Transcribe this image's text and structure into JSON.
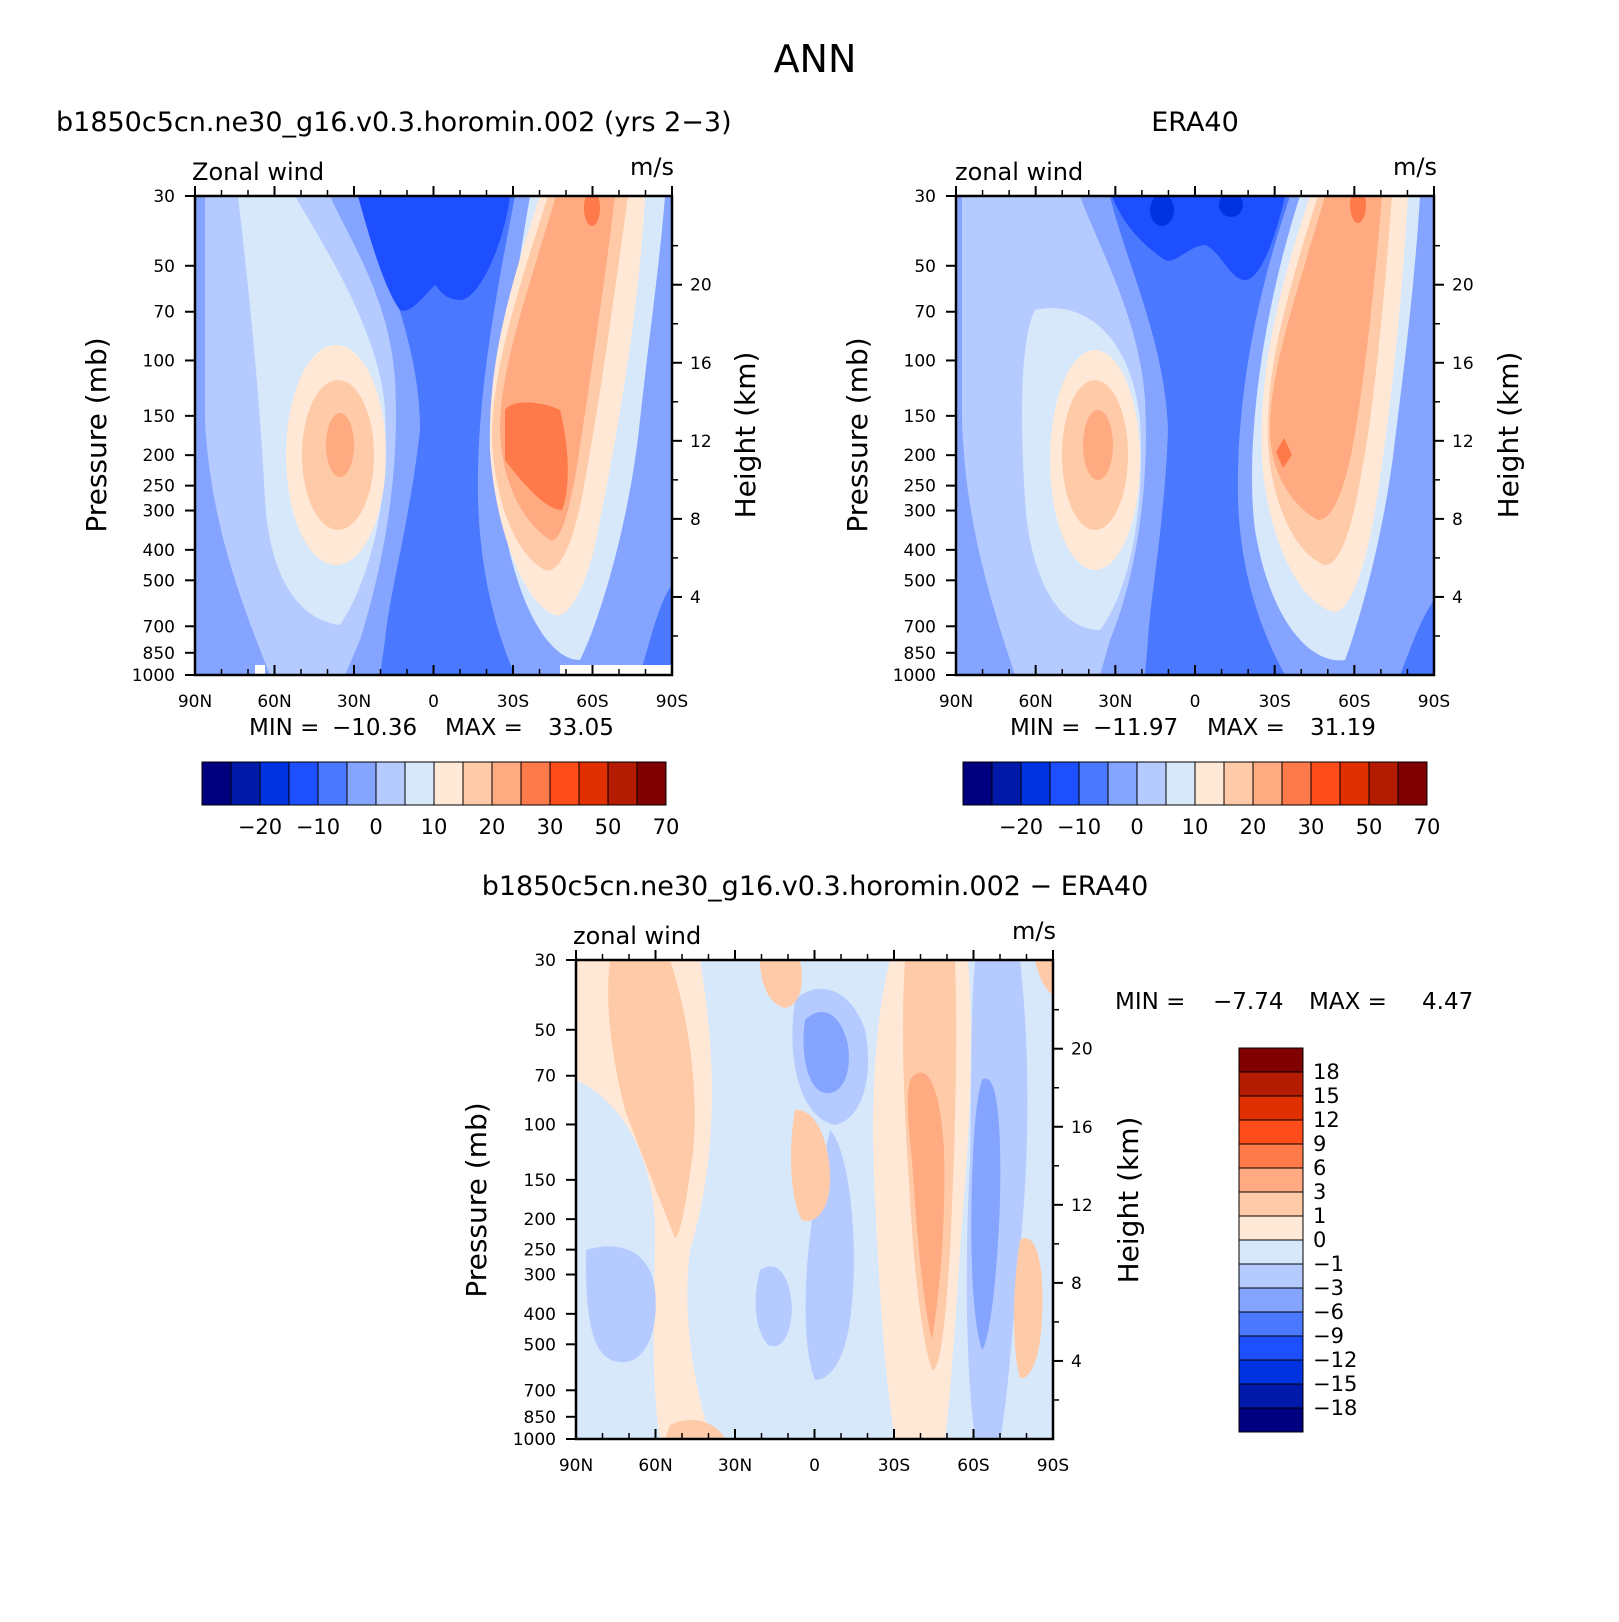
{
  "page_title": "ANN",
  "chart_data": [
    {
      "id": "model",
      "type": "heatmap",
      "title": "b1850c5cn.ne30_g16.v0.3.horomin.002 (yrs 2−3)",
      "left_label": "Zonal wind",
      "right_label": "m/s",
      "ylabel": "Pressure (mb)",
      "ylabel_right": "Height (km)",
      "x_ticks": [
        "90N",
        "60N",
        "30N",
        "0",
        "30S",
        "60S",
        "90S"
      ],
      "y_ticks": [
        "30",
        "50",
        "70",
        "100",
        "150",
        "200",
        "250",
        "300",
        "400",
        "500",
        "700",
        "850",
        "1000"
      ],
      "y2_ticks": [
        "20",
        "16",
        "12",
        "8",
        "4"
      ],
      "min_label": "MIN =",
      "min_value": "−10.36",
      "max_label": "MAX =",
      "max_value": "33.05",
      "colorbar": {
        "colors": [
          "#00007f",
          "#0019a8",
          "#0033e0",
          "#1e4fff",
          "#4a78ff",
          "#84a4ff",
          "#b5cbff",
          "#d8e8fb",
          "#ffe8d6",
          "#ffcaa8",
          "#ffaa80",
          "#ff7a4a",
          "#ff4c1a",
          "#e03000",
          "#b31c00",
          "#7f0000"
        ],
        "labels": [
          "−20",
          "−10",
          "0",
          "10",
          "20",
          "30",
          "50",
          "70"
        ]
      }
    },
    {
      "id": "obs",
      "type": "heatmap",
      "title": "ERA40",
      "left_label": "zonal wind",
      "right_label": "m/s",
      "ylabel": "Pressure (mb)",
      "ylabel_right": "Height (km)",
      "x_ticks": [
        "90N",
        "60N",
        "30N",
        "0",
        "30S",
        "60S",
        "90S"
      ],
      "y_ticks": [
        "30",
        "50",
        "70",
        "100",
        "150",
        "200",
        "250",
        "300",
        "400",
        "500",
        "700",
        "850",
        "1000"
      ],
      "y2_ticks": [
        "20",
        "16",
        "12",
        "8",
        "4"
      ],
      "min_label": "MIN =",
      "min_value": "−11.97",
      "max_label": "MAX =",
      "max_value": "31.19",
      "colorbar": {
        "colors": [
          "#00007f",
          "#0019a8",
          "#0033e0",
          "#1e4fff",
          "#4a78ff",
          "#84a4ff",
          "#b5cbff",
          "#d8e8fb",
          "#ffe8d6",
          "#ffcaa8",
          "#ffaa80",
          "#ff7a4a",
          "#ff4c1a",
          "#e03000",
          "#b31c00",
          "#7f0000"
        ],
        "labels": [
          "−20",
          "−10",
          "0",
          "10",
          "20",
          "30",
          "50",
          "70"
        ]
      }
    },
    {
      "id": "diff",
      "type": "heatmap",
      "title": "b1850c5cn.ne30_g16.v0.3.horomin.002 − ERA40",
      "left_label": "zonal wind",
      "right_label": "m/s",
      "ylabel": "Pressure (mb)",
      "ylabel_right": "Height (km)",
      "x_ticks": [
        "90N",
        "60N",
        "30N",
        "0",
        "30S",
        "60S",
        "90S"
      ],
      "y_ticks": [
        "30",
        "50",
        "70",
        "100",
        "150",
        "200",
        "250",
        "300",
        "400",
        "500",
        "700",
        "850",
        "1000"
      ],
      "y2_ticks": [
        "20",
        "16",
        "12",
        "8",
        "4"
      ],
      "min_label": "MIN =",
      "min_value": "−7.74",
      "max_label": "MAX =",
      "max_value": "4.47",
      "colorbar": {
        "colors": [
          "#7f0000",
          "#b31c00",
          "#e03000",
          "#ff4c1a",
          "#ff7a4a",
          "#ffaa80",
          "#ffcaa8",
          "#ffe8d6",
          "#d8e8fb",
          "#b5cbff",
          "#84a4ff",
          "#4a78ff",
          "#1e4fff",
          "#0033e0",
          "#0019a8",
          "#00007f"
        ],
        "labels": [
          "18",
          "15",
          "12",
          "9",
          "6",
          "3",
          "1",
          "0",
          "−1",
          "−3",
          "−6",
          "−9",
          "−12",
          "−15",
          "−18"
        ]
      }
    }
  ]
}
